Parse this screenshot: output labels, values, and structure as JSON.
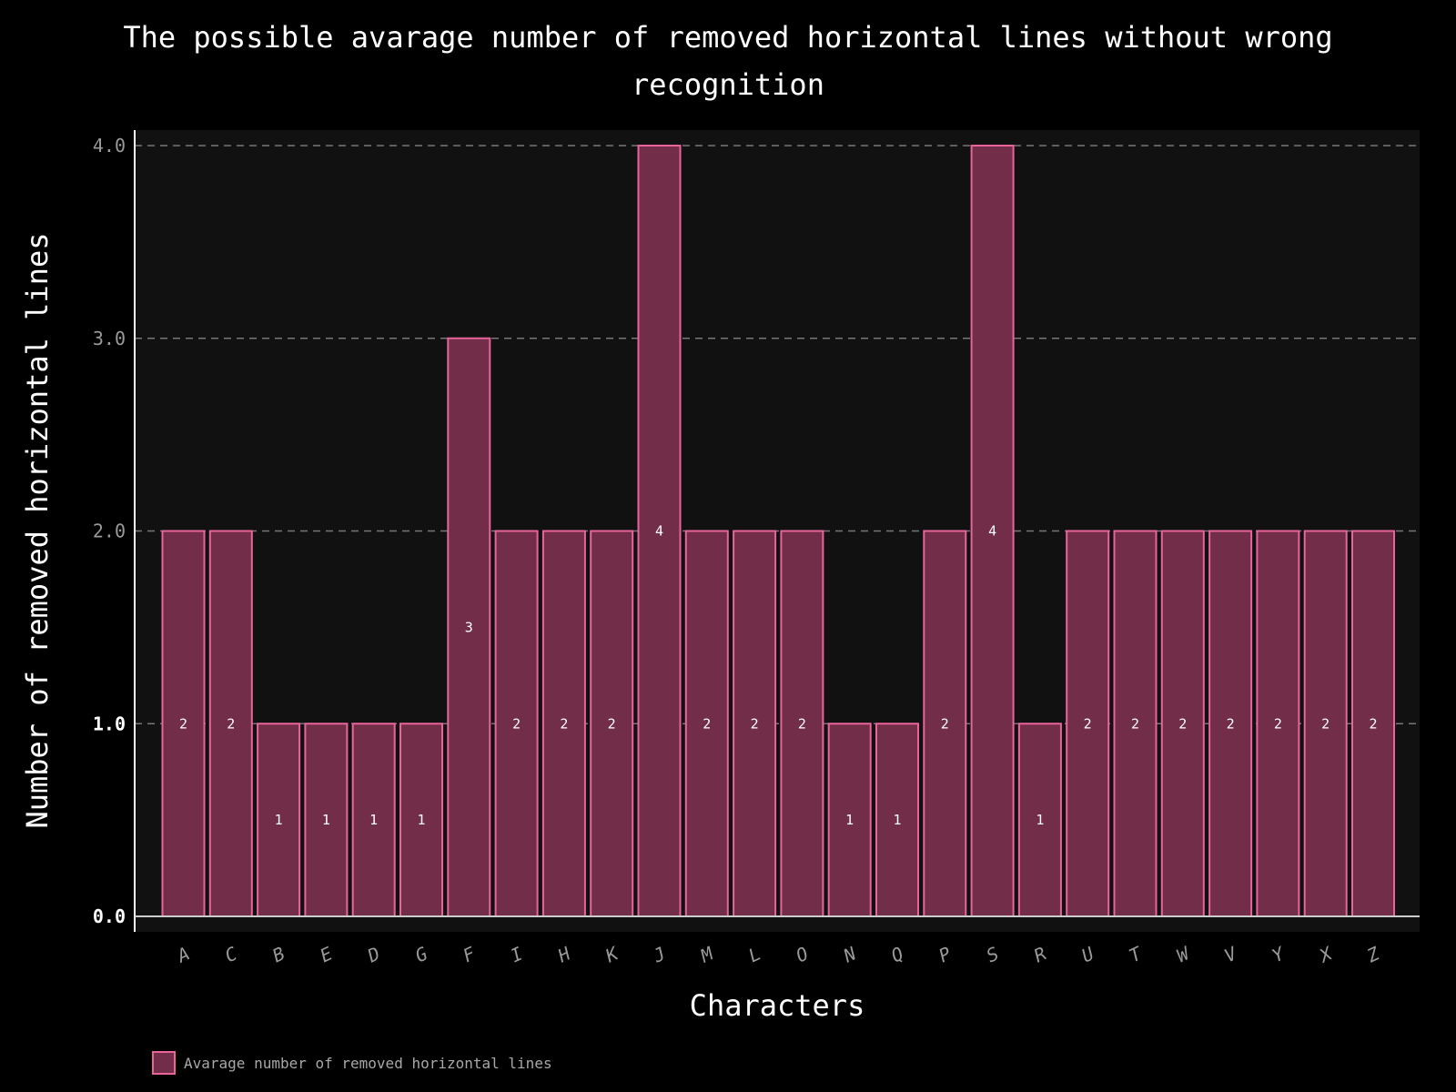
{
  "chart_data": {
    "type": "bar",
    "title_line1": "The possible avarage number of removed horizontal lines without wrong",
    "title_line2": "recognition",
    "xlabel": "Characters",
    "ylabel": "Number of removed horizontal lines",
    "categories": [
      "A",
      "C",
      "B",
      "E",
      "D",
      "G",
      "F",
      "I",
      "H",
      "K",
      "J",
      "M",
      "L",
      "O",
      "N",
      "Q",
      "P",
      "S",
      "R",
      "U",
      "T",
      "W",
      "V",
      "Y",
      "X",
      "Z"
    ],
    "series": [
      {
        "name": "Avarage number of removed horizontal lines",
        "values": [
          2,
          2,
          1,
          1,
          1,
          1,
          3,
          2,
          2,
          2,
          4,
          2,
          2,
          2,
          1,
          1,
          2,
          4,
          1,
          2,
          2,
          2,
          2,
          2,
          2,
          2
        ]
      }
    ],
    "data_labels": [
      "2",
      "2",
      "1",
      "1",
      "1",
      "1",
      "3",
      "2",
      "2",
      "2",
      "4",
      "2",
      "2",
      "2",
      "1",
      "1",
      "2",
      "4",
      "1",
      "2",
      "2",
      "2",
      "2",
      "2",
      "2",
      "2"
    ],
    "yticks": [
      "0.0",
      "1.0",
      "2.0",
      "3.0",
      "4.0"
    ],
    "ylim": [
      0,
      4
    ],
    "grid": "horizontal dashed",
    "legend_position": "bottom-left",
    "colors": {
      "background": "#000000",
      "plot_background": "#111111",
      "bar_fill": "#722d48",
      "bar_edge": "#e8649a",
      "grid": "#777777",
      "axis": "#cccccc"
    }
  }
}
